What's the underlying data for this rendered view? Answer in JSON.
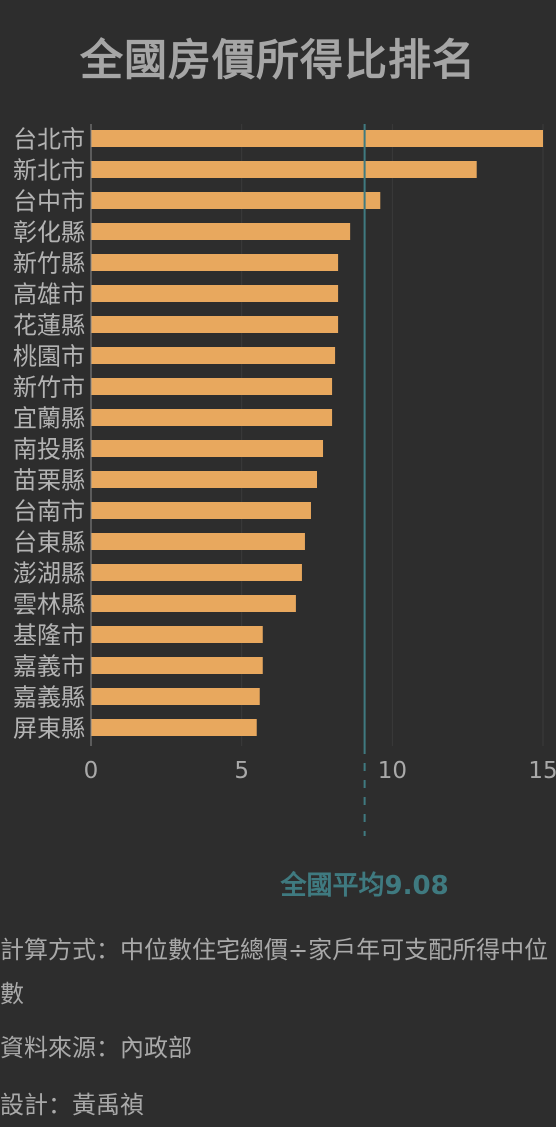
{
  "chart_data": {
    "type": "bar",
    "orientation": "horizontal",
    "title": "全國房價所得比排名",
    "categories": [
      "台北市",
      "新北市",
      "台中市",
      "彰化縣",
      "新竹縣",
      "高雄市",
      "花蓮縣",
      "桃園市",
      "新竹市",
      "宜蘭縣",
      "南投縣",
      "苗栗縣",
      "台南市",
      "台東縣",
      "澎湖縣",
      "雲林縣",
      "基隆市",
      "嘉義市",
      "嘉義縣",
      "屏東縣"
    ],
    "values": [
      15.0,
      12.8,
      9.6,
      8.6,
      8.2,
      8.2,
      8.2,
      8.1,
      8.0,
      8.0,
      7.7,
      7.5,
      7.3,
      7.1,
      7.0,
      6.8,
      5.7,
      5.7,
      5.6,
      5.5
    ],
    "xlim": [
      0,
      15
    ],
    "xticks": [
      "0",
      "5",
      "10",
      "15"
    ],
    "grid": true,
    "bar_color": "#e8a85e",
    "reference_line": {
      "value": 9.08,
      "label": "全國平均9.08",
      "color": "#3f7a80"
    }
  },
  "notes": {
    "method": "計算方式：中位數住宅總價÷家戶年可支配所得中位數",
    "source": "資料來源：內政部",
    "design": "設計：黃禹禎"
  }
}
